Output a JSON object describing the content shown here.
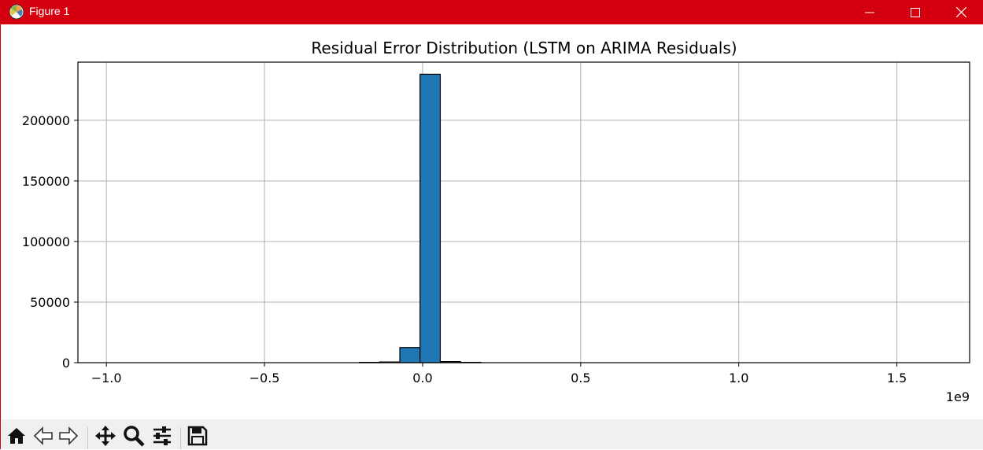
{
  "window": {
    "title": "Figure 1",
    "app_icon": "matplotlib-icon",
    "controls": [
      "minimize-icon",
      "maximize-icon",
      "close-icon"
    ],
    "titlebar_color": "#d4000f"
  },
  "toolbar": {
    "buttons": [
      "home-icon",
      "back-icon",
      "forward-icon",
      "pan-icon",
      "zoom-icon",
      "configure-subplots-icon",
      "save-icon"
    ]
  },
  "chart_data": {
    "type": "bar",
    "title": "Residual Error Distribution (LSTM on ARIMA Residuals)",
    "xlabel": "",
    "ylabel": "",
    "x_offset_label": "1e9",
    "xlim": [
      -1.09,
      1.73
    ],
    "ylim": [
      0,
      248000
    ],
    "xticks": [
      -1.0,
      -0.5,
      0.0,
      0.5,
      1.0,
      1.5
    ],
    "xtick_labels": [
      "−1.0",
      "−0.5",
      "0.0",
      "0.5",
      "1.0",
      "1.5"
    ],
    "yticks": [
      0,
      50000,
      100000,
      150000,
      200000
    ],
    "ytick_labels": [
      "0",
      "50000",
      "100000",
      "150000",
      "200000"
    ],
    "grid": true,
    "bar_color": "#1f77b4",
    "edge_color": "#000000",
    "bins": [
      {
        "x0": -0.968,
        "x1": -0.904,
        "count": 0
      },
      {
        "x0": -0.904,
        "x1": -0.84,
        "count": 0
      },
      {
        "x0": -0.84,
        "x1": -0.776,
        "count": 0
      },
      {
        "x0": -0.776,
        "x1": -0.712,
        "count": 0
      },
      {
        "x0": -0.712,
        "x1": -0.648,
        "count": 0
      },
      {
        "x0": -0.648,
        "x1": -0.584,
        "count": 0
      },
      {
        "x0": -0.584,
        "x1": -0.52,
        "count": 0
      },
      {
        "x0": -0.52,
        "x1": -0.456,
        "count": 0
      },
      {
        "x0": -0.456,
        "x1": -0.392,
        "count": 0
      },
      {
        "x0": -0.392,
        "x1": -0.328,
        "count": 0
      },
      {
        "x0": -0.328,
        "x1": -0.264,
        "count": 0
      },
      {
        "x0": -0.264,
        "x1": -0.2,
        "count": 0
      },
      {
        "x0": -0.2,
        "x1": -0.136,
        "count": 300
      },
      {
        "x0": -0.136,
        "x1": -0.072,
        "count": 600
      },
      {
        "x0": -0.072,
        "x1": -0.008,
        "count": 12500
      },
      {
        "x0": -0.008,
        "x1": 0.056,
        "count": 238000
      },
      {
        "x0": 0.056,
        "x1": 0.12,
        "count": 900
      },
      {
        "x0": 0.12,
        "x1": 0.184,
        "count": 300
      },
      {
        "x0": 0.184,
        "x1": 0.248,
        "count": 0
      },
      {
        "x0": 0.248,
        "x1": 0.312,
        "count": 0
      },
      {
        "x0": 0.312,
        "x1": 0.376,
        "count": 0
      },
      {
        "x0": 0.376,
        "x1": 0.44,
        "count": 0
      },
      {
        "x0": 0.44,
        "x1": 0.504,
        "count": 0
      },
      {
        "x0": 0.504,
        "x1": 0.568,
        "count": 0
      },
      {
        "x0": 0.568,
        "x1": 0.632,
        "count": 0
      },
      {
        "x0": 0.632,
        "x1": 0.696,
        "count": 0
      },
      {
        "x0": 0.696,
        "x1": 0.76,
        "count": 0
      },
      {
        "x0": 0.76,
        "x1": 0.824,
        "count": 0
      },
      {
        "x0": 0.824,
        "x1": 0.888,
        "count": 0
      },
      {
        "x0": 0.888,
        "x1": 0.952,
        "count": 0
      },
      {
        "x0": 0.952,
        "x1": 1.016,
        "count": 0
      },
      {
        "x0": 1.016,
        "x1": 1.08,
        "count": 0
      },
      {
        "x0": 1.08,
        "x1": 1.144,
        "count": 0
      },
      {
        "x0": 1.144,
        "x1": 1.208,
        "count": 0
      },
      {
        "x0": 1.208,
        "x1": 1.272,
        "count": 0
      },
      {
        "x0": 1.272,
        "x1": 1.336,
        "count": 0
      },
      {
        "x0": 1.336,
        "x1": 1.4,
        "count": 0
      },
      {
        "x0": 1.4,
        "x1": 1.464,
        "count": 0
      },
      {
        "x0": 1.464,
        "x1": 1.528,
        "count": 0
      },
      {
        "x0": 1.528,
        "x1": 1.592,
        "count": 0
      }
    ]
  }
}
